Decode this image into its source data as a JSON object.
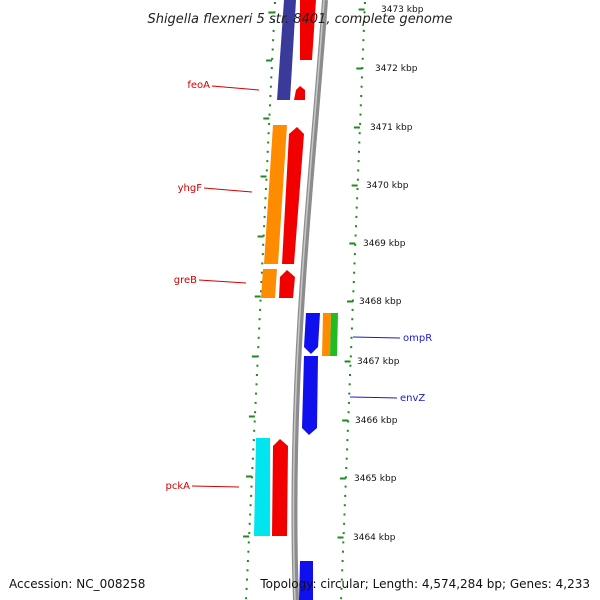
{
  "title": "Shigella flexneri 5 str. 8401, complete genome",
  "accession": "Accession: NC_008258",
  "topology": "Topology: circular; Length: 4,574,284 bp; Genes: 4,233",
  "colors": {
    "backbone": "#8c8c8c",
    "ruler_dot": "#1f8a1f",
    "label_top_strand": "#d40000",
    "label_bottom_strand": "#1a1acc",
    "red_cds": "#f20000",
    "orange_cds": "#ff8c00",
    "navy_cds": "#3a3a9a",
    "blue_cds": "#1010ee",
    "cyan_cds": "#00e5ee",
    "green_cds": "#22bb22"
  },
  "kbp_labels": [
    "3473 kbp",
    "3472 kbp",
    "3471 kbp",
    "3470 kbp",
    "3469 kbp",
    "3468 kbp",
    "3467 kbp",
    "3466 kbp",
    "3465 kbp",
    "3464 kbp"
  ],
  "genes": [
    {
      "name": "feoA",
      "strand": "top"
    },
    {
      "name": "yhgF",
      "strand": "top"
    },
    {
      "name": "greB",
      "strand": "top"
    },
    {
      "name": "ompR",
      "strand": "bottom"
    },
    {
      "name": "envZ",
      "strand": "bottom"
    },
    {
      "name": "pckA",
      "strand": "top"
    }
  ]
}
